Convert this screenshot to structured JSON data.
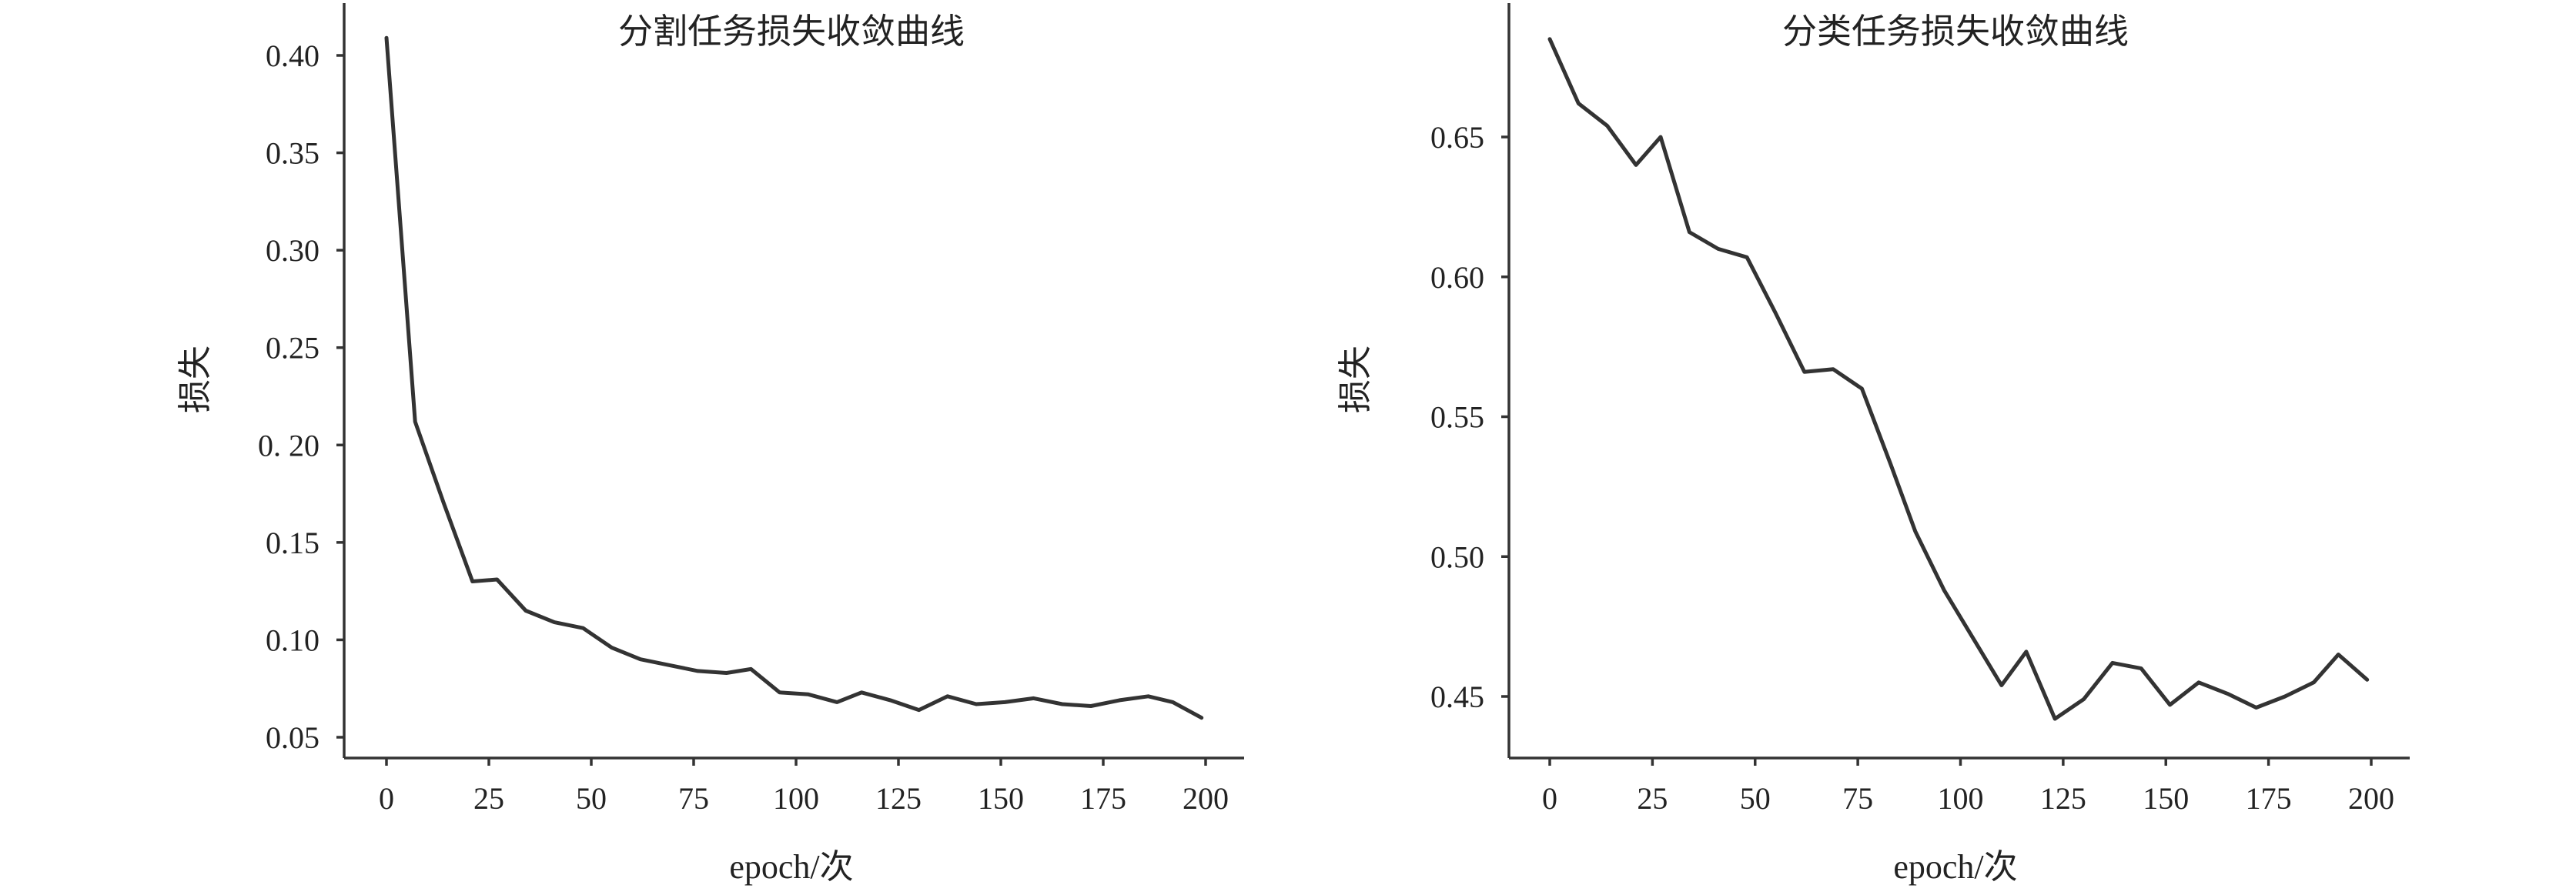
{
  "chart_data": [
    {
      "type": "line",
      "title": "分割任务损失收敛曲线",
      "xlabel": "epoch/次",
      "ylabel": "损失",
      "xlim": [
        0,
        200
      ],
      "ylim": [
        0.05,
        0.42
      ],
      "x_ticks": [
        "0",
        "25",
        "50",
        "75",
        "100",
        "125",
        "150",
        "175",
        "200"
      ],
      "y_ticks": [
        "0.05",
        "0.10",
        "0.15",
        "0.20",
        "0.25",
        "0.30",
        "0.35",
        "0.40"
      ],
      "y_tick_labels": [
        "0.05",
        "0.10",
        "0.15",
        "0. 20",
        "0.25",
        "0.30",
        "0.35",
        "0.40"
      ],
      "grid": false,
      "series": [
        {
          "x": [
            0,
            7,
            14,
            21,
            27,
            34,
            41,
            48,
            55,
            62,
            69,
            76,
            83,
            89,
            96,
            103,
            110,
            116,
            123,
            130,
            137,
            144,
            151,
            158,
            165,
            172,
            179,
            186,
            192,
            199
          ],
          "values": [
            0.409,
            0.212,
            0.17,
            0.13,
            0.131,
            0.115,
            0.109,
            0.106,
            0.096,
            0.09,
            0.087,
            0.084,
            0.083,
            0.085,
            0.073,
            0.072,
            0.068,
            0.073,
            0.069,
            0.064,
            0.071,
            0.067,
            0.068,
            0.07,
            0.067,
            0.066,
            0.069,
            0.071,
            0.068,
            0.06
          ]
        }
      ]
    },
    {
      "type": "line",
      "title": "分类任务损失收敛曲线",
      "xlabel": "epoch/次",
      "ylabel": "损失",
      "xlim": [
        0,
        200
      ],
      "ylim": [
        0.44,
        0.69
      ],
      "x_ticks": [
        "0",
        "25",
        "50",
        "75",
        "100",
        "125",
        "150",
        "175",
        "200"
      ],
      "y_ticks": [
        "0.45",
        "0.50",
        "0.55",
        "0.60",
        "0.65"
      ],
      "y_tick_labels": [
        "0.45",
        "0.50",
        "0.55",
        "0.60",
        "0.65"
      ],
      "grid": false,
      "series": [
        {
          "x": [
            0,
            7,
            14,
            21,
            27,
            34,
            41,
            48,
            55,
            62,
            69,
            76,
            83,
            89,
            96,
            103,
            110,
            116,
            123,
            130,
            137,
            144,
            151,
            158,
            165,
            172,
            179,
            186,
            192,
            199
          ],
          "values": [
            0.685,
            0.662,
            0.654,
            0.64,
            0.65,
            0.616,
            0.61,
            0.607,
            0.587,
            0.566,
            0.567,
            0.56,
            0.533,
            0.509,
            0.488,
            0.471,
            0.454,
            0.466,
            0.442,
            0.449,
            0.462,
            0.46,
            0.447,
            0.455,
            0.451,
            0.446,
            0.45,
            0.455,
            0.465,
            0.456
          ]
        }
      ]
    }
  ]
}
